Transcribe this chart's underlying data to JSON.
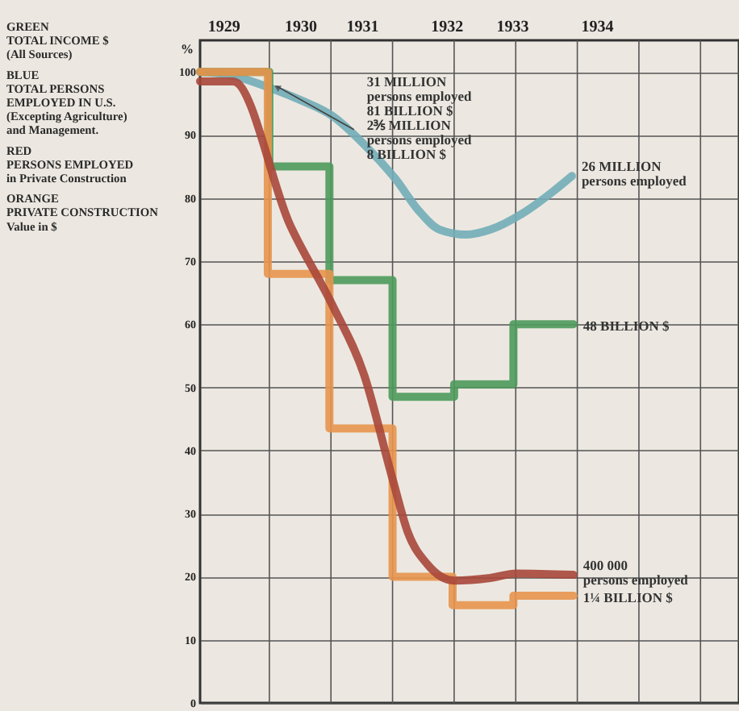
{
  "chart_data": {
    "type": "line",
    "ylabel": "%",
    "xlim": [
      1929,
      1936
    ],
    "ylim": [
      0,
      105
    ],
    "yticks": [
      0,
      10,
      20,
      30,
      40,
      50,
      60,
      70,
      80,
      90,
      100
    ],
    "xticks": [
      {
        "value": 1929.3,
        "label": "1929"
      },
      {
        "value": 1930.3,
        "label": "1930"
      },
      {
        "value": 1931.1,
        "label": "1931"
      },
      {
        "value": 1932.2,
        "label": "1932"
      },
      {
        "value": 1933.05,
        "label": "1933"
      },
      {
        "value": 1934.15,
        "label": "1934"
      },
      {
        "value": 1929.9,
        "label": null
      },
      {
        "value": 1930.7,
        "label": null
      },
      {
        "value": 1931.5,
        "label": null
      },
      {
        "value": 1932.3,
        "label": null
      },
      {
        "value": 1933.1,
        "label": null
      },
      {
        "value": 1933.9,
        "label": null
      },
      {
        "value": 1934.7,
        "label": null
      },
      {
        "value": 1935.5,
        "label": null
      }
    ],
    "grid": true,
    "series": [
      {
        "color": "#72adb8",
        "x": [
          1929.0,
          1929.39,
          1929.9,
          1930.31,
          1930.72,
          1931.13,
          1931.54,
          1931.84,
          1932.11,
          1932.46,
          1932.77,
          1933.18,
          1933.58,
          1933.83
        ],
        "values": [
          100,
          99.5,
          97.5,
          95.5,
          93,
          88.5,
          83,
          78,
          75,
          74.2,
          75,
          77.5,
          81,
          83.5
        ]
      },
      {
        "type": "step",
        "color": "#4e9a5c",
        "x": [
          1929.0,
          1929.9,
          1930.68,
          1931.5,
          1932.3,
          1933.07,
          1933.85
        ],
        "values": [
          100,
          85,
          67,
          48.5,
          50.5,
          60,
          60
        ]
      },
      {
        "type": "step",
        "color": "#e8954e",
        "x": [
          1929.0,
          1929.88,
          1930.68,
          1931.5,
          1932.28,
          1933.07,
          1933.85
        ],
        "values": [
          100,
          68,
          43.5,
          20,
          15.5,
          17,
          17
        ]
      },
      {
        "color": "#a8473a",
        "x": [
          1929.0,
          1929.43,
          1930.17,
          1930.72,
          1931.13,
          1931.5,
          1931.7,
          1931.95,
          1932.3,
          1932.77,
          1933.11,
          1933.85
        ],
        "values": [
          98.5,
          98.5,
          75.7,
          63,
          52,
          35.5,
          27,
          22,
          19.4,
          19.8,
          20.5,
          20.3
        ]
      }
    ],
    "annotations": [
      "GREEN\nTOTAL INCOME $\n(All Sources)",
      "BLUE\nTOTAL PERSONS\nEMPLOYED IN U.S.\n(Excepting Agriculture)\nand Management.",
      "RED\nPERSONS EMPLOYED\nin Private Construction",
      "ORANGE\nPRIVATE CONSTRUCTION\nValue in $",
      {
        "text": "31 MILLION\npersons employed\n81 BILLION $\n2⅗ MILLION\npersons employed\n8 BILLION $",
        "x": 1929.95,
        "y": 97.5
      },
      {
        "text": "26 MILLION\npersons employed",
        "x": 1933.83,
        "y": 83.5
      },
      {
        "text": "48 BILLION $",
        "x": 1933.85,
        "y": 60
      },
      {
        "text": "400 000\npersons employed",
        "x": 1933.85,
        "y": 20.3
      },
      {
        "text": "1¼ BILLION $",
        "x": 1933.85,
        "y": 17
      }
    ]
  }
}
